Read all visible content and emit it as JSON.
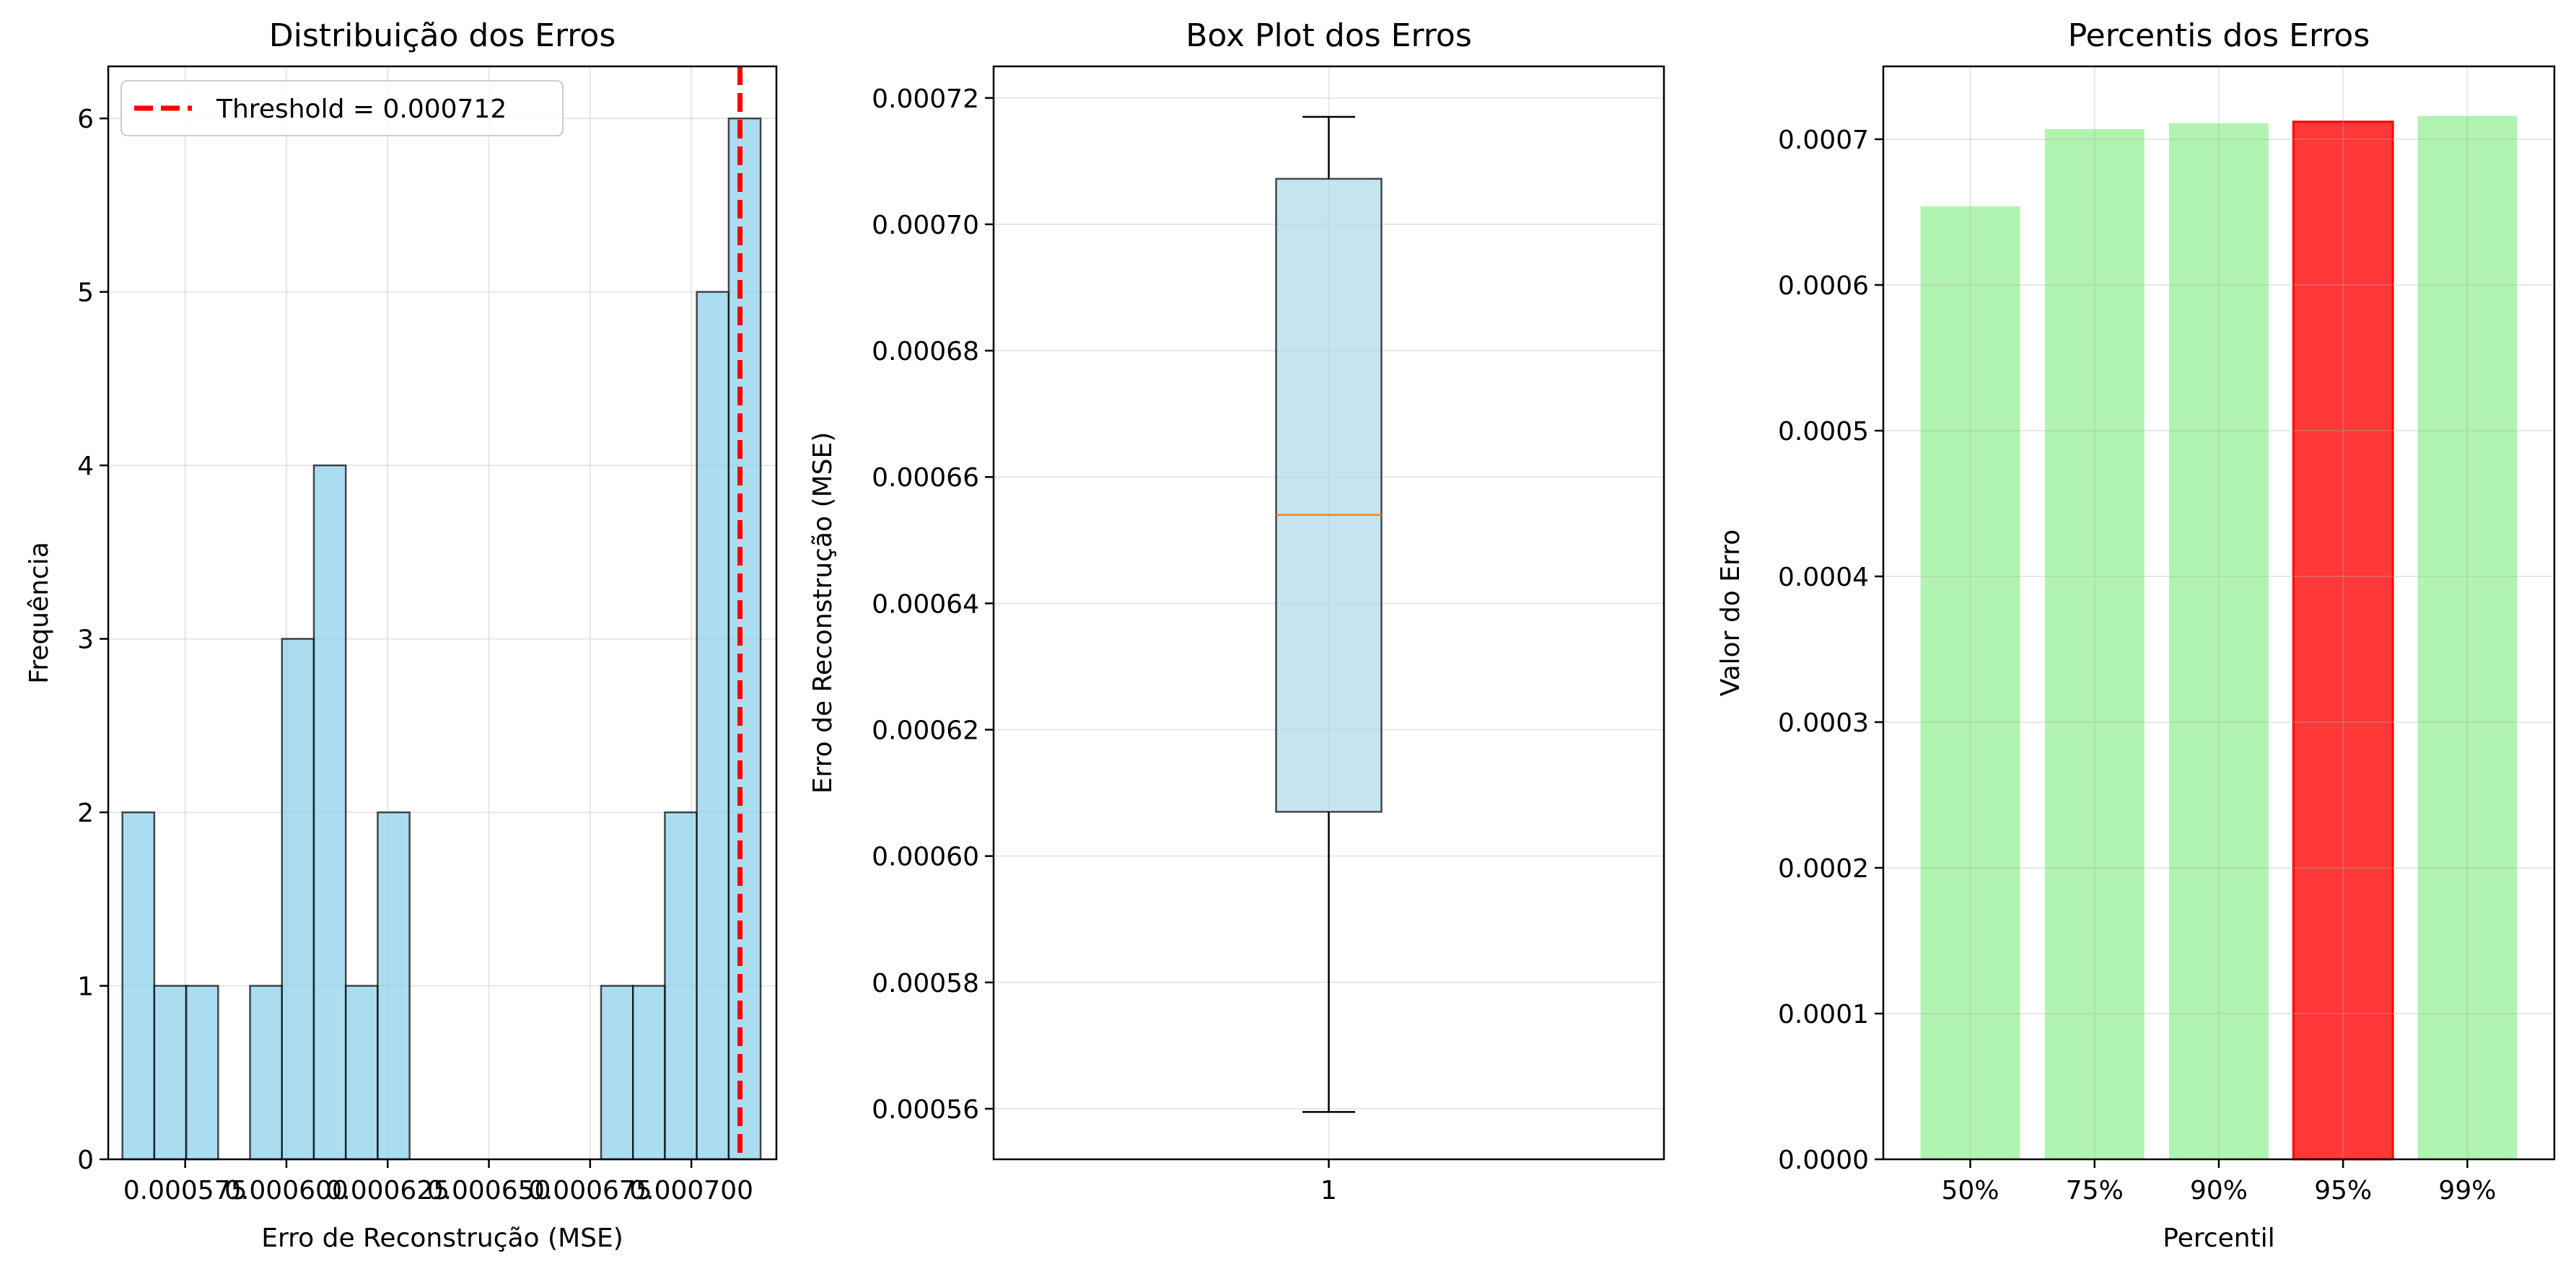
{
  "colors": {
    "hist_fill": "#87CEEB",
    "hist_edge": "#000000",
    "threshold_line": "#FF0000",
    "box_fill": "#ADD8E6",
    "box_edge": "#000000",
    "median": "#FF7F0E",
    "bar_normal": "#90EE90",
    "bar_highlight": "#FF0000",
    "grid": "#B0B0B0"
  },
  "chart_data": [
    {
      "type": "bar",
      "subtype": "histogram",
      "title": "Distribuição dos Erros",
      "xlabel": "Erro de Reconstrução (MSE)",
      "ylabel": "Frequência",
      "xlim": [
        0.000556,
        0.000721
      ],
      "ylim": [
        0,
        6.3
      ],
      "bin_start": 0.0005595,
      "bin_width": 7.88e-06,
      "counts": [
        2,
        1,
        1,
        0,
        1,
        3,
        4,
        1,
        2,
        0,
        0,
        0,
        0,
        0,
        0,
        1,
        1,
        2,
        5,
        6
      ],
      "xticks": [
        0.000575,
        0.0006,
        0.000625,
        0.00065,
        0.000675,
        0.0007
      ],
      "xtick_labels": [
        "0.000575",
        "0.000600",
        "0.000625",
        "0.000650",
        "0.000675",
        "0.000700"
      ],
      "yticks": [
        0,
        1,
        2,
        3,
        4,
        5,
        6
      ],
      "ytick_labels": [
        "0",
        "1",
        "2",
        "3",
        "4",
        "5",
        "6"
      ],
      "threshold": 0.000712,
      "legend_label": "Threshold = 0.000712",
      "legend": "upper-left",
      "grid": true
    },
    {
      "type": "box",
      "title": "Box Plot dos Erros",
      "ylabel": "Erro de Reconstrução (MSE)",
      "category": "1",
      "ylim": [
        0.000552,
        0.000725
      ],
      "whisker_low": 0.0005595,
      "q1": 0.000607,
      "median": 0.000654,
      "q3": 0.0007072,
      "whisker_high": 0.000717,
      "yticks": [
        0.00056,
        0.00058,
        0.0006,
        0.00062,
        0.00064,
        0.00066,
        0.00068,
        0.0007,
        0.00072
      ],
      "ytick_labels": [
        "0.00056",
        "0.00058",
        "0.00060",
        "0.00062",
        "0.00064",
        "0.00066",
        "0.00068",
        "0.00070",
        "0.00072"
      ],
      "grid": true
    },
    {
      "type": "bar",
      "title": "Percentis dos Erros",
      "xlabel": "Percentil",
      "ylabel": "Valor do Erro",
      "categories": [
        "50%",
        "75%",
        "90%",
        "95%",
        "99%"
      ],
      "values": [
        0.000654,
        0.000707,
        0.000711,
        0.000712,
        0.000716
      ],
      "highlight_index": 3,
      "ylim": [
        0,
        0.00075
      ],
      "yticks": [
        0,
        0.0001,
        0.0002,
        0.0003,
        0.0004,
        0.0005,
        0.0006,
        0.0007
      ],
      "ytick_labels": [
        "0.0000",
        "0.0001",
        "0.0002",
        "0.0003",
        "0.0004",
        "0.0005",
        "0.0006",
        "0.0007"
      ],
      "grid": true
    }
  ]
}
